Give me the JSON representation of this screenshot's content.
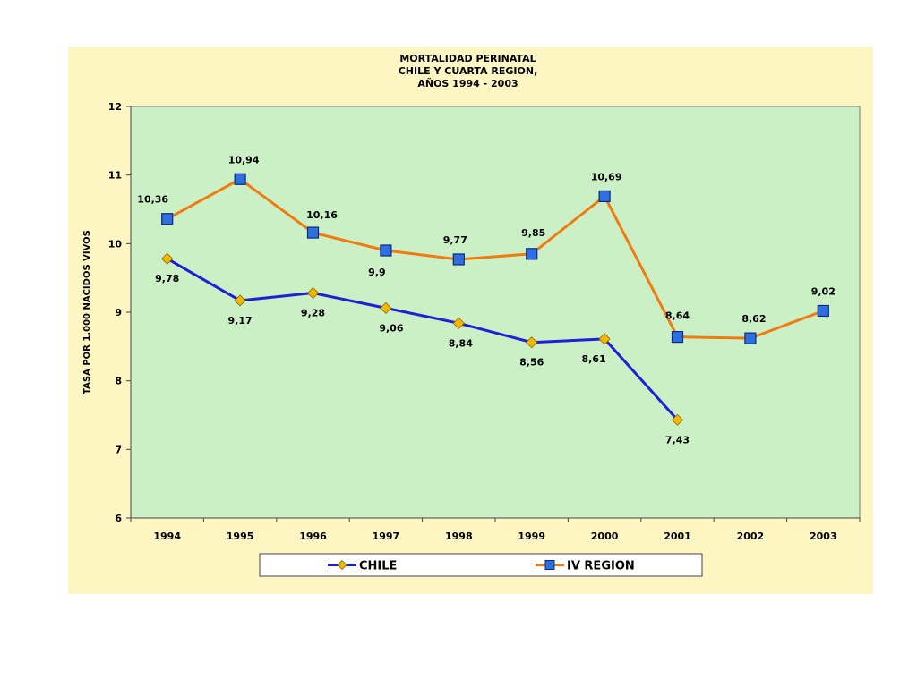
{
  "chart_data": {
    "type": "line",
    "title": [
      "MORTALIDAD PERINATAL",
      "CHILE Y CUARTA REGION,",
      "AÑOS 1994 - 2003"
    ],
    "ylabel": "TASA POR 1.000 NACIDOS VIVOS",
    "xlabel": "",
    "ylim": [
      6,
      12
    ],
    "yticks": [
      6,
      7,
      8,
      9,
      10,
      11,
      12
    ],
    "categories": [
      "1994",
      "1995",
      "1996",
      "1997",
      "1998",
      "1999",
      "2000",
      "2001",
      "2002",
      "2003"
    ],
    "series": [
      {
        "name": "CHILE",
        "color": "#1f1fd6",
        "marker": "diamond",
        "marker_color": "#f5b800",
        "values": [
          9.78,
          9.17,
          9.28,
          9.06,
          8.84,
          8.56,
          8.61,
          7.43,
          null,
          null
        ],
        "labels": [
          "9,78",
          "9,17",
          "9,28",
          "9,06",
          "8,84",
          "8,56",
          "8,61",
          "7,43",
          null,
          null
        ]
      },
      {
        "name": "IV REGION",
        "color": "#f07b10",
        "marker": "square",
        "marker_color": "#2f6fe0",
        "values": [
          10.36,
          10.94,
          10.16,
          9.9,
          9.77,
          9.85,
          10.69,
          8.64,
          8.62,
          9.02
        ],
        "labels": [
          "10,36",
          "10,94",
          "10,16",
          "9,9",
          "9,77",
          "9,85",
          "10,69",
          "8,64",
          "8,62",
          "9,02"
        ]
      }
    ],
    "colors": {
      "outer_background": "#fdf6c3",
      "plot_background": "#ccf0c6",
      "frame": "#777777"
    },
    "legend_placement": "bottom",
    "grid": false
  }
}
